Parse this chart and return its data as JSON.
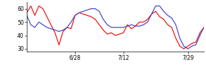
{
  "red_y": [
    57,
    62,
    55,
    62,
    60,
    54,
    48,
    42,
    33,
    43,
    46,
    45,
    55,
    57,
    56,
    55,
    54,
    52,
    48,
    44,
    41,
    42,
    40,
    41,
    42,
    48,
    45,
    47,
    50,
    50,
    52,
    56,
    58,
    54,
    52,
    48,
    46,
    38,
    32,
    30,
    32,
    34,
    35,
    42,
    46
  ],
  "blue_y": [
    55,
    48,
    46,
    50,
    48,
    46,
    45,
    44,
    43,
    44,
    46,
    50,
    55,
    57,
    58,
    59,
    60,
    60,
    58,
    52,
    48,
    46,
    46,
    46,
    46,
    47,
    48,
    47,
    47,
    48,
    50,
    56,
    62,
    62,
    58,
    55,
    53,
    48,
    38,
    32,
    30,
    32,
    33,
    40,
    46
  ],
  "xlim": [
    0,
    44
  ],
  "ylim": [
    28,
    65
  ],
  "yticks": [
    30,
    40,
    50,
    60
  ],
  "xtick_positions": [
    12,
    24,
    40
  ],
  "xtick_labels": [
    "6/28",
    "7/12",
    "7/29"
  ],
  "red_color": "#ee1111",
  "blue_color": "#4444cc",
  "linewidth": 0.9,
  "bg_color": "#ffffff"
}
